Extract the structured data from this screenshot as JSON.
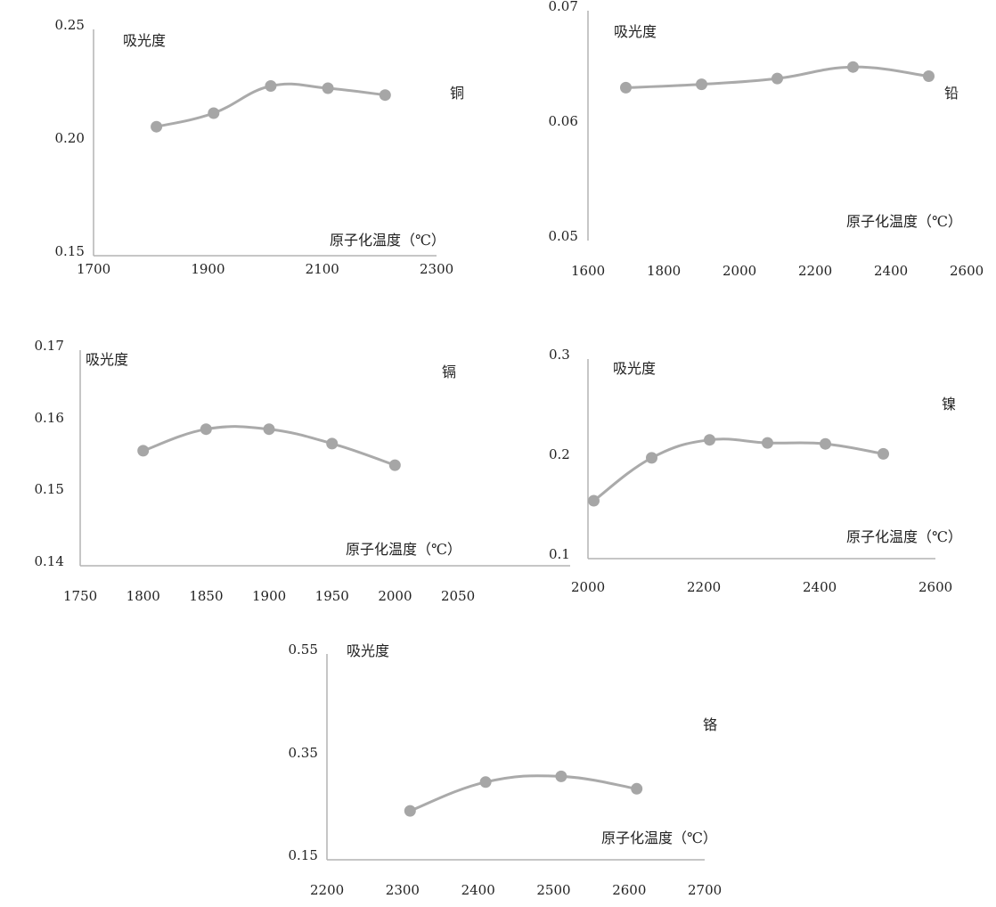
{
  "chart_data": [
    {
      "type": "line",
      "ylabel": "吸光度",
      "xlabel": "原子化温度（℃）",
      "series": [
        {
          "name": "铜",
          "x": [
            1810,
            1910,
            2010,
            2110,
            2210
          ],
          "y": [
            0.207,
            0.213,
            0.225,
            0.224,
            0.221
          ]
        }
      ],
      "xlim": [
        1700,
        2300
      ],
      "ylim": [
        0.15,
        0.25
      ],
      "xticks": [
        "1700",
        "1900",
        "2100",
        "2300"
      ],
      "yticks": [
        "0.15",
        "0.20",
        "0.25"
      ],
      "grid": false,
      "line_color": "#aaaaaa",
      "marker_color": "#a6a6a6"
    },
    {
      "type": "line",
      "ylabel": "吸光度",
      "xlabel": "原子化温度（℃）",
      "series": [
        {
          "name": "铅",
          "x": [
            1700,
            1900,
            2100,
            2300,
            2500
          ],
          "y": [
            0.0633,
            0.0636,
            0.0641,
            0.0651,
            0.0643
          ]
        }
      ],
      "xlim": [
        1600,
        2600
      ],
      "ylim": [
        0.05,
        0.07
      ],
      "xticks": [
        "1600",
        "1800",
        "2000",
        "2200",
        "2400",
        "2600"
      ],
      "yticks": [
        "0.05",
        "0.06",
        "0.07"
      ],
      "grid": false,
      "line_color": "#aaaaaa",
      "marker_color": "#a6a6a6"
    },
    {
      "type": "line",
      "ylabel": "吸光度",
      "xlabel": "原子化温度（℃）",
      "series": [
        {
          "name": "镉",
          "x": [
            1800,
            1850,
            1900,
            1950,
            2000
          ],
          "y": [
            0.156,
            0.159,
            0.159,
            0.157,
            0.154
          ]
        }
      ],
      "xlim": [
        1750,
        2050
      ],
      "ylim": [
        0.14,
        0.17
      ],
      "xticks": [
        "1750",
        "1800",
        "1850",
        "1900",
        "1950",
        "2000",
        "2050"
      ],
      "yticks": [
        "0.14",
        "0.15",
        "0.16",
        "0.17"
      ],
      "grid": false,
      "line_color": "#aaaaaa",
      "marker_color": "#a6a6a6"
    },
    {
      "type": "line",
      "ylabel": "吸光度",
      "xlabel": "原子化温度（℃）",
      "series": [
        {
          "name": "镍",
          "x": [
            2010,
            2110,
            2210,
            2310,
            2410,
            2510
          ],
          "y": [
            0.158,
            0.201,
            0.219,
            0.216,
            0.215,
            0.205
          ]
        }
      ],
      "xlim": [
        2000,
        2600
      ],
      "ylim": [
        0.1,
        0.3
      ],
      "xticks": [
        "2000",
        "2200",
        "2400",
        "2600"
      ],
      "yticks": [
        "0.1",
        "0.2",
        "0.3"
      ],
      "grid": false,
      "line_color": "#aaaaaa",
      "marker_color": "#a6a6a6"
    },
    {
      "type": "line",
      "ylabel": "吸光度",
      "xlabel": "原子化温度（℃）",
      "series": [
        {
          "name": "铬",
          "x": [
            2310,
            2410,
            2510,
            2610
          ],
          "y": [
            0.245,
            0.301,
            0.312,
            0.288
          ]
        }
      ],
      "xlim": [
        2200,
        2700
      ],
      "ylim": [
        0.15,
        0.55
      ],
      "xticks": [
        "2200",
        "2300",
        "2400",
        "2500",
        "2600",
        "2700"
      ],
      "yticks": [
        "0.15",
        "0.35",
        "0.55"
      ],
      "grid": false,
      "line_color": "#aaaaaa",
      "marker_color": "#a6a6a6"
    }
  ]
}
